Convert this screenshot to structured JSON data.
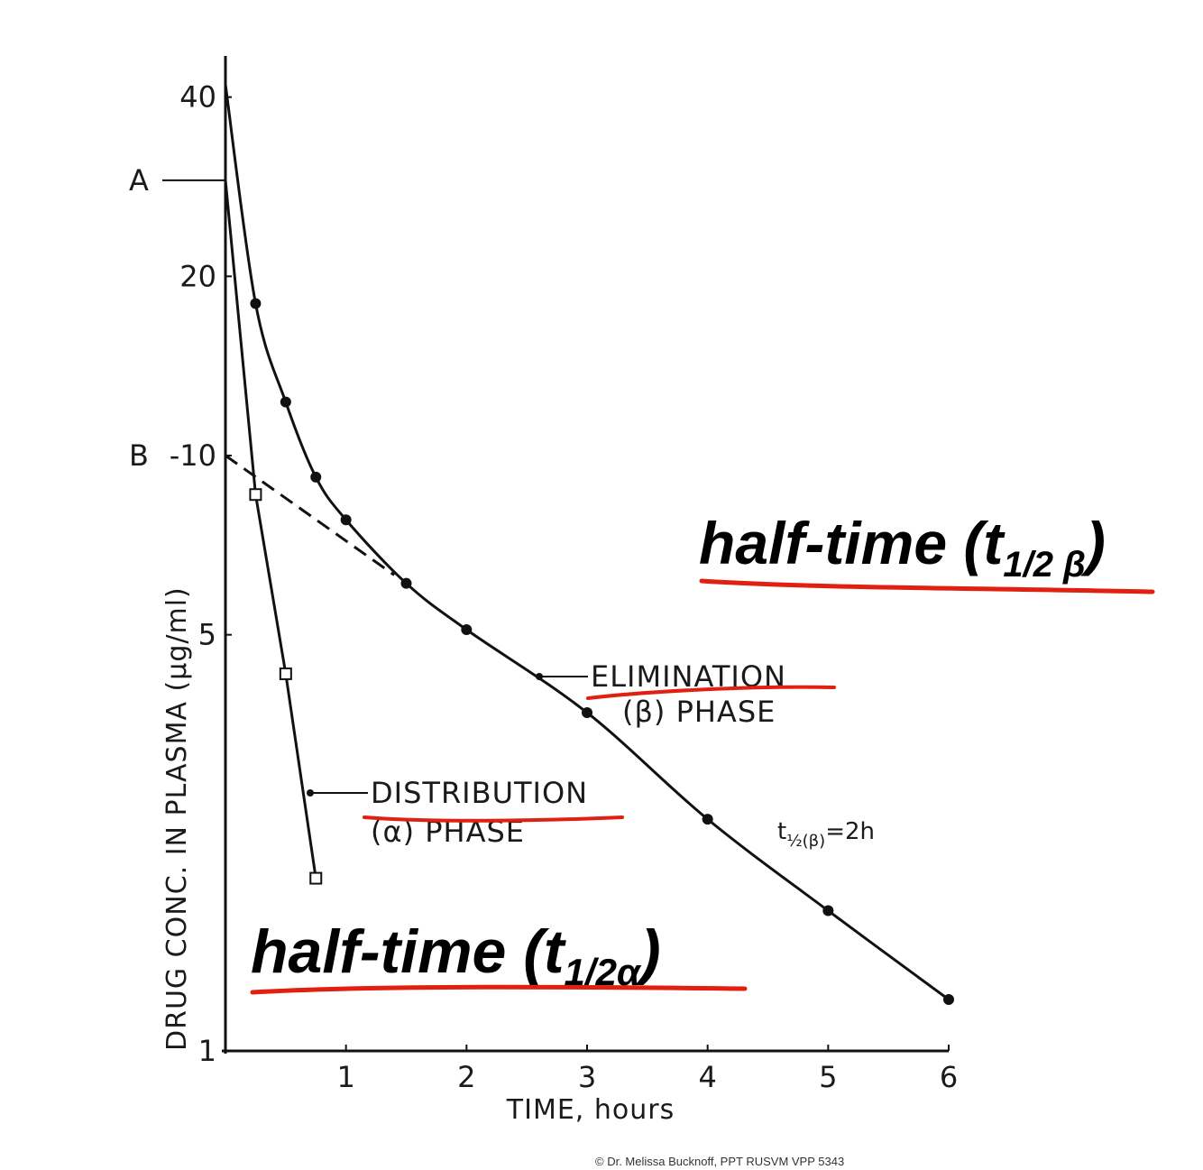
{
  "chart_data": {
    "type": "line",
    "title": "",
    "xlabel": "TIME, hours",
    "ylabel": "DRUG CONC. IN PLASMA (µg/ml)",
    "y_scale": "log",
    "xlim": [
      0,
      6
    ],
    "ylim": [
      1,
      42
    ],
    "x_ticks": [
      {
        "value": 1,
        "label": "1"
      },
      {
        "value": 2,
        "label": "2"
      },
      {
        "value": 3,
        "label": "3"
      },
      {
        "value": 4,
        "label": "4"
      },
      {
        "value": 5,
        "label": "5"
      },
      {
        "value": 6,
        "label": "6"
      }
    ],
    "y_ticks": [
      {
        "value": 1,
        "label": "1"
      },
      {
        "value": 5,
        "label": "5"
      },
      {
        "value": 10,
        "label": "-10"
      },
      {
        "value": 20,
        "label": "20"
      },
      {
        "value": 40,
        "label": "40"
      }
    ],
    "y_markers": [
      {
        "value": 29,
        "label": "A"
      },
      {
        "value": 10,
        "label": "B"
      }
    ],
    "grid": false,
    "series": [
      {
        "name": "",
        "marker": "filled-circle",
        "style": "solid",
        "points": [
          {
            "x": 0,
            "y": 42
          },
          {
            "x": 0.25,
            "y": 18
          },
          {
            "x": 0.5,
            "y": 12.3
          },
          {
            "x": 0.75,
            "y": 9.2
          },
          {
            "x": 1,
            "y": 7.8
          },
          {
            "x": 1.5,
            "y": 6.1
          },
          {
            "x": 2,
            "y": 5.1
          },
          {
            "x": 3,
            "y": 3.7
          },
          {
            "x": 4,
            "y": 2.45
          },
          {
            "x": 5,
            "y": 1.72
          },
          {
            "x": 6,
            "y": 1.22
          }
        ]
      },
      {
        "name": "",
        "marker": "open-square",
        "style": "solid",
        "points": [
          {
            "x": 0,
            "y": 29
          },
          {
            "x": 0.25,
            "y": 8.6
          },
          {
            "x": 0.5,
            "y": 4.3
          },
          {
            "x": 0.75,
            "y": 1.95
          }
        ]
      },
      {
        "name": "",
        "marker": "none",
        "style": "dashed",
        "points": [
          {
            "x": 0,
            "y": 10
          },
          {
            "x": 1.4,
            "y": 6.3
          }
        ]
      }
    ],
    "annotations": {
      "elimination": {
        "line1": "ELIMINATION",
        "line2": "(β) PHASE"
      },
      "distribution": {
        "line1": "DISTRIBUTION",
        "line2": "(α) PHASE"
      },
      "half_life_beta": {
        "prefix": "t",
        "sub": "½(β)",
        "suffix": "=2h"
      },
      "half_time_beta": {
        "text": "half-time (t",
        "sub": "1/2 β",
        "close": ")"
      },
      "half_time_alpha": {
        "text": "half-time (t",
        "sub": "1/2α",
        "close": ")"
      }
    },
    "colors": {
      "line": "#111111",
      "underline": "#e02010"
    }
  },
  "footer": {
    "copyright": "© Dr. Melissa Bucknoff, PPT RUSVM VPP 5343"
  }
}
